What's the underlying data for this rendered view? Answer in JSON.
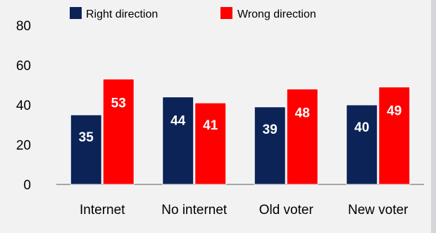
{
  "chart_data": {
    "type": "bar",
    "categories": [
      "Internet",
      "No internet",
      "Old voter",
      "New voter"
    ],
    "series": [
      {
        "name": "Right direction",
        "values": [
          35,
          44,
          39,
          40
        ],
        "color": "#0b2357"
      },
      {
        "name": "Wrong direction",
        "values": [
          53,
          41,
          48,
          49
        ],
        "color": "#ff0000"
      }
    ],
    "title": "",
    "xlabel": "",
    "ylabel": "",
    "ylim": [
      0,
      80
    ],
    "yticks": [
      0,
      20,
      40,
      60,
      80
    ],
    "grid": false,
    "legend_position": "top"
  }
}
